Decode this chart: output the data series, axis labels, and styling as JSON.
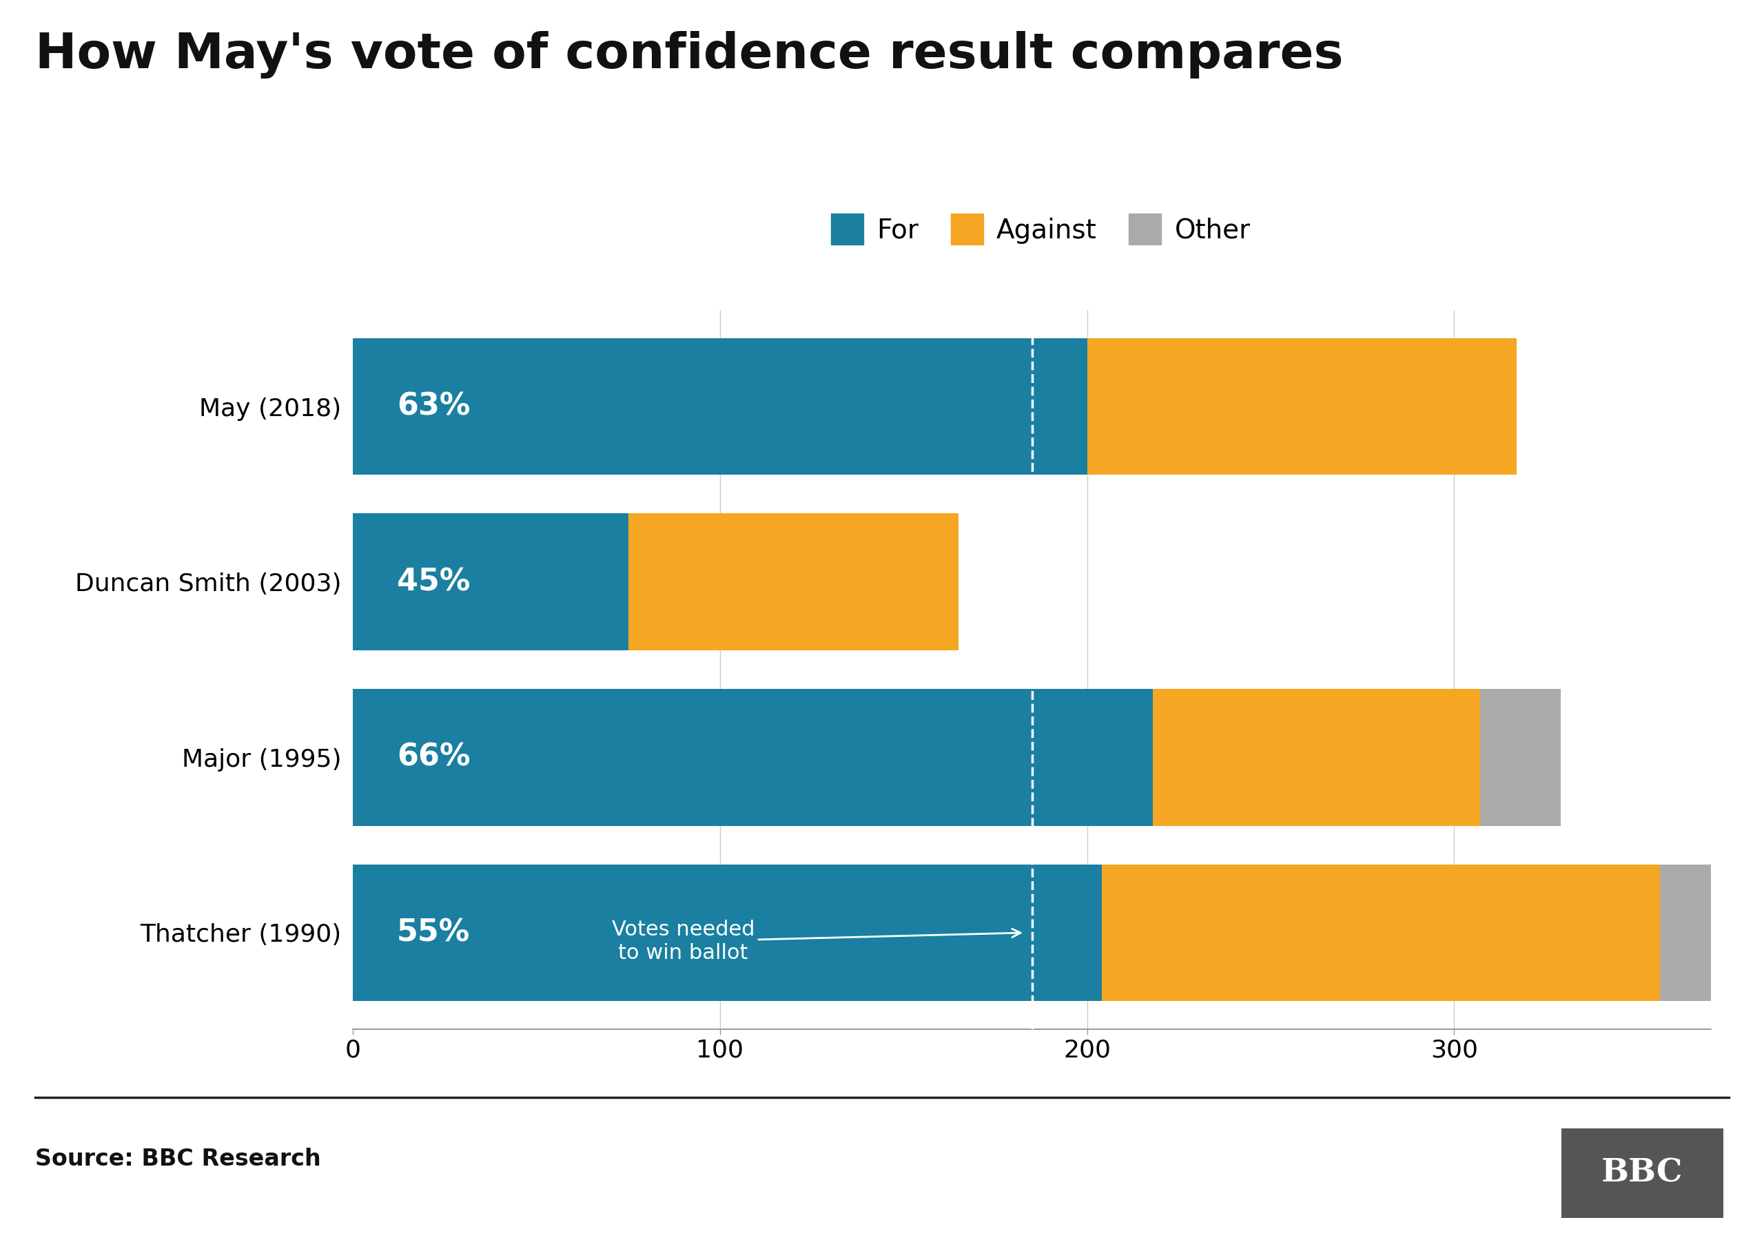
{
  "title": "How May's vote of confidence result compares",
  "categories": [
    "May (2018)",
    "Duncan Smith (2003)",
    "Major (1995)",
    "Thatcher (1990)"
  ],
  "for_values": [
    200,
    75,
    218,
    204
  ],
  "against_values": [
    117,
    90,
    89,
    152
  ],
  "other_values": [
    0,
    0,
    22,
    17
  ],
  "for_pct_labels": [
    "63%",
    "45%",
    "66%",
    "55%"
  ],
  "color_for": "#1a7fa0",
  "color_against": "#f5a623",
  "color_other": "#aaaaaa",
  "dashed_line_x": 185,
  "annotation_text": "Votes needed\nto win ballot",
  "xlim_max": 370,
  "xticks": [
    0,
    100,
    200,
    300
  ],
  "source_text": "Source: BBC Research",
  "background_color": "#ffffff",
  "title_fontsize": 52,
  "ylabel_fontsize": 26,
  "tick_fontsize": 26,
  "legend_fontsize": 28,
  "bar_label_fontsize": 32,
  "annotation_fontsize": 22,
  "bar_height": 0.78,
  "bar_gap": 0.12
}
